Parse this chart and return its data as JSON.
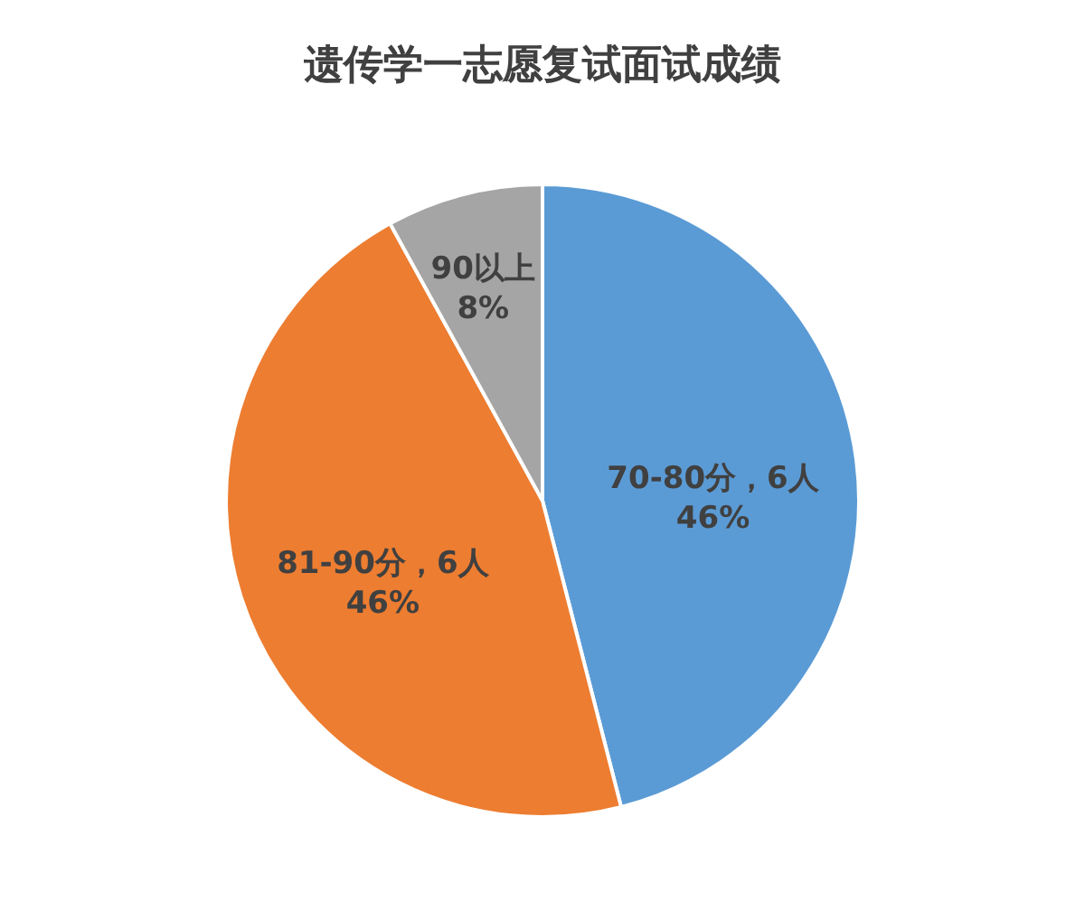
{
  "chart_data": {
    "type": "pie",
    "title": "遗传学一志愿复试面试成绩",
    "categories": [
      "70-80分，6人",
      "81-90分，6人",
      "90以上"
    ],
    "values": [
      46,
      46,
      8
    ],
    "value_labels": [
      "46%",
      "46%",
      "8%"
    ],
    "colors": [
      "#5b9bd5",
      "#ed7d31",
      "#a5a5a5"
    ],
    "legend": false
  }
}
